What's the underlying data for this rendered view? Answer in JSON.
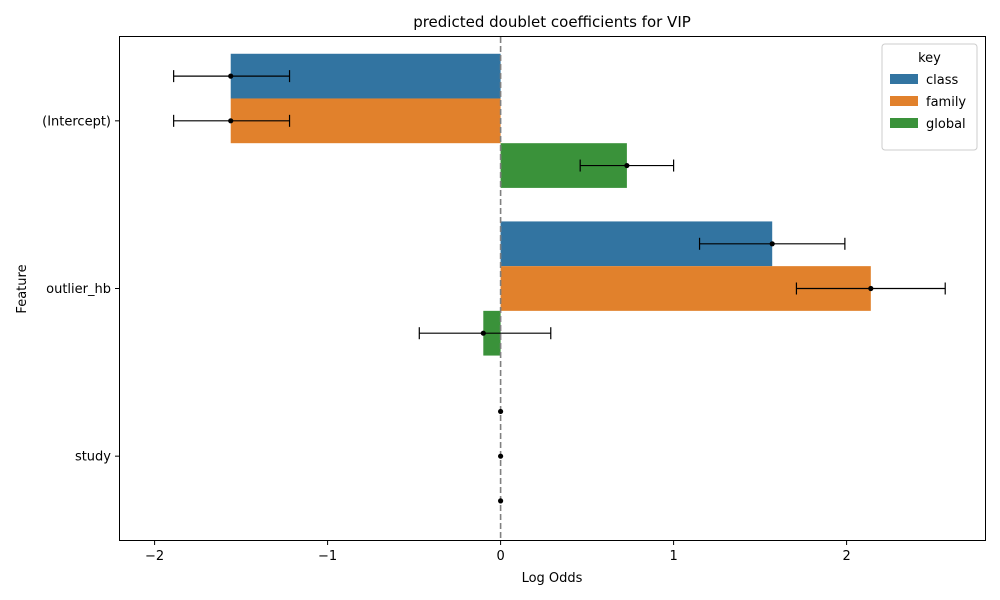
{
  "chart_data": {
    "type": "bar",
    "orientation": "horizontal",
    "title": "predicted doublet coefficients for VIP",
    "xlabel": "Log Odds",
    "ylabel": "Feature",
    "categories": [
      "(Intercept)",
      "outlier_hb",
      "study"
    ],
    "xlim": [
      -2.2,
      2.8
    ],
    "xticks": [
      -2,
      -1,
      0,
      1,
      2
    ],
    "xtick_labels": [
      "−2",
      "−1",
      "0",
      "1",
      "2"
    ],
    "reference_line": 0,
    "grid": false,
    "legend": {
      "title": "key",
      "placement": "top-right"
    },
    "series": [
      {
        "name": "class",
        "color": "#3274a1",
        "values": [
          -1.56,
          1.57,
          0.0
        ],
        "ci_low": [
          -1.89,
          1.15,
          null
        ],
        "ci_high": [
          -1.22,
          1.99,
          null
        ]
      },
      {
        "name": "family",
        "color": "#e1812c",
        "values": [
          -1.56,
          2.14,
          0.0
        ],
        "ci_low": [
          -1.89,
          1.71,
          null
        ],
        "ci_high": [
          -1.22,
          2.57,
          null
        ]
      },
      {
        "name": "global",
        "color": "#3a923a",
        "values": [
          0.73,
          -0.1,
          0.0
        ],
        "ci_low": [
          0.46,
          -0.47,
          null
        ],
        "ci_high": [
          1.0,
          0.29,
          null
        ]
      }
    ]
  }
}
